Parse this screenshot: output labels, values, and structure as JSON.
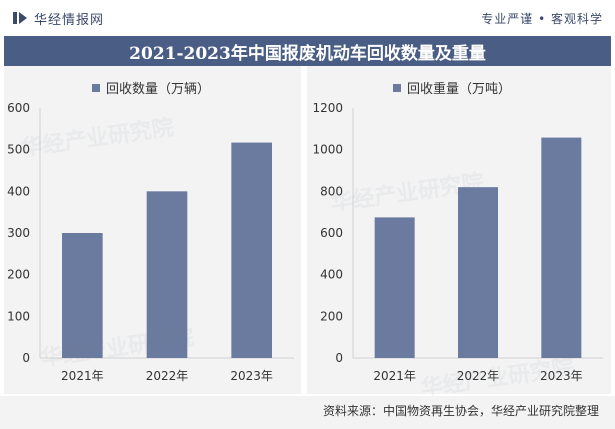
{
  "header": {
    "brand": "华经情报网",
    "tagline": "专业严谨 • 客观科学",
    "title": "2021-2023年中国报废机动车回收数量及重量"
  },
  "watermark": {
    "text": "华经产业研究院",
    "url": "www.huaon.com"
  },
  "source": "资料来源：中国物资再生协会，华经产业研究院整理",
  "colors": {
    "bar": "#6b7b9f",
    "title_bg": "#4a5d85",
    "panel_bg": "#f3f3f3"
  },
  "chart_data": [
    {
      "type": "bar",
      "title": "",
      "series": [
        {
          "name": "回收数量（万辆）",
          "values": [
            300,
            400,
            517
          ]
        }
      ],
      "categories": [
        "2021年",
        "2022年",
        "2023年"
      ],
      "ylim": [
        0,
        600
      ],
      "yticks": [
        0,
        100,
        200,
        300,
        400,
        500,
        600
      ],
      "legend": "top-center",
      "grid": false
    },
    {
      "type": "bar",
      "title": "",
      "series": [
        {
          "name": "回收重量（万吨）",
          "values": [
            675,
            820,
            1058
          ]
        }
      ],
      "categories": [
        "2021年",
        "2022年",
        "2023年"
      ],
      "ylim": [
        0,
        1200
      ],
      "yticks": [
        0,
        200,
        400,
        600,
        800,
        1000,
        1200
      ],
      "legend": "top-center",
      "grid": false
    }
  ]
}
